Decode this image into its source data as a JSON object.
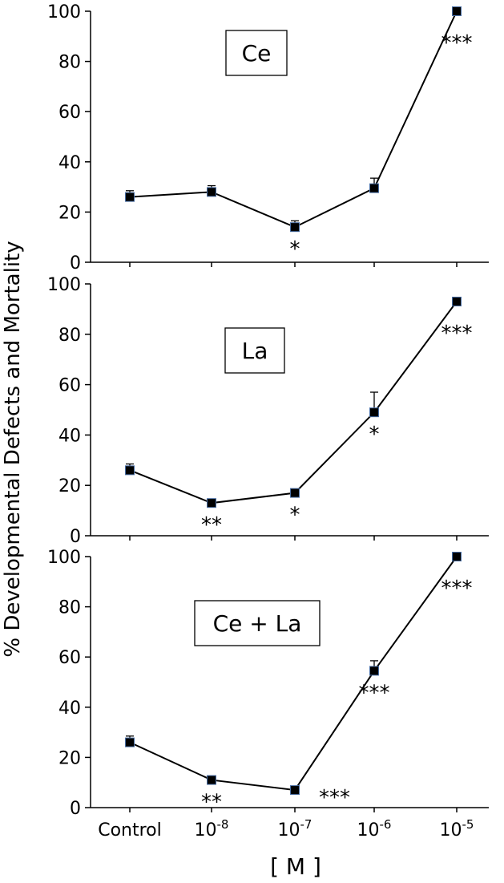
{
  "chart_data": {
    "type": "line",
    "ylabel": "% Developmental Defects and Mortality",
    "xlabel": "[ M ]",
    "x_tick_labels": [
      {
        "base": "Control",
        "exp": ""
      },
      {
        "base": "10",
        "exp": "-8"
      },
      {
        "base": "10",
        "exp": "-7"
      },
      {
        "base": "10",
        "exp": "-6"
      },
      {
        "base": "10",
        "exp": "-5"
      }
    ],
    "y_ticks": [
      "0",
      "20",
      "40",
      "60",
      "80",
      "100"
    ],
    "ylim": [
      0,
      100
    ],
    "marker_color": "#000000",
    "marker_edge": "#4a6fa5",
    "panels": [
      {
        "label": "Ce",
        "values": [
          26,
          28,
          14,
          29.5,
          100
        ],
        "errors": [
          2.5,
          2.5,
          2.5,
          4,
          0
        ],
        "significance": [
          "",
          "",
          "*",
          "",
          "***"
        ]
      },
      {
        "label": "La",
        "values": [
          26,
          13,
          17,
          49,
          93
        ],
        "errors": [
          2.5,
          1,
          1,
          8,
          0
        ],
        "significance": [
          "",
          "**",
          "*",
          "*",
          "***"
        ]
      },
      {
        "label": "Ce + La",
        "values": [
          26,
          11,
          7,
          54.5,
          100
        ],
        "errors": [
          2.5,
          1,
          0.5,
          4,
          0
        ],
        "significance": [
          "",
          "**",
          "***",
          "***",
          "***"
        ]
      }
    ]
  }
}
